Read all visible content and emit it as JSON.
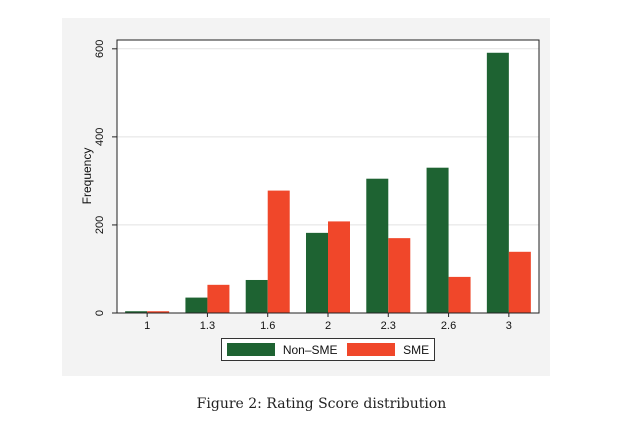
{
  "chart_data": {
    "type": "bar",
    "categories": [
      "1",
      "1.3",
      "1.6",
      "2",
      "2.3",
      "2.6",
      "3"
    ],
    "series": [
      {
        "name": "Non–SME",
        "color": "#1e6332",
        "values": [
          4,
          35,
          75,
          182,
          305,
          330,
          591
        ]
      },
      {
        "name": "SME",
        "color": "#f0472a",
        "values": [
          4,
          64,
          278,
          208,
          170,
          82,
          139
        ]
      }
    ],
    "ylabel": "Frequency",
    "xlabel": "",
    "ylim": [
      0,
      620
    ],
    "yticks": [
      "0",
      "200",
      "400",
      "600"
    ],
    "ytick_values": [
      0,
      200,
      400,
      600
    ],
    "grid": true,
    "legend_position": "bottom"
  },
  "caption": "Figure 2: Rating Score distribution"
}
